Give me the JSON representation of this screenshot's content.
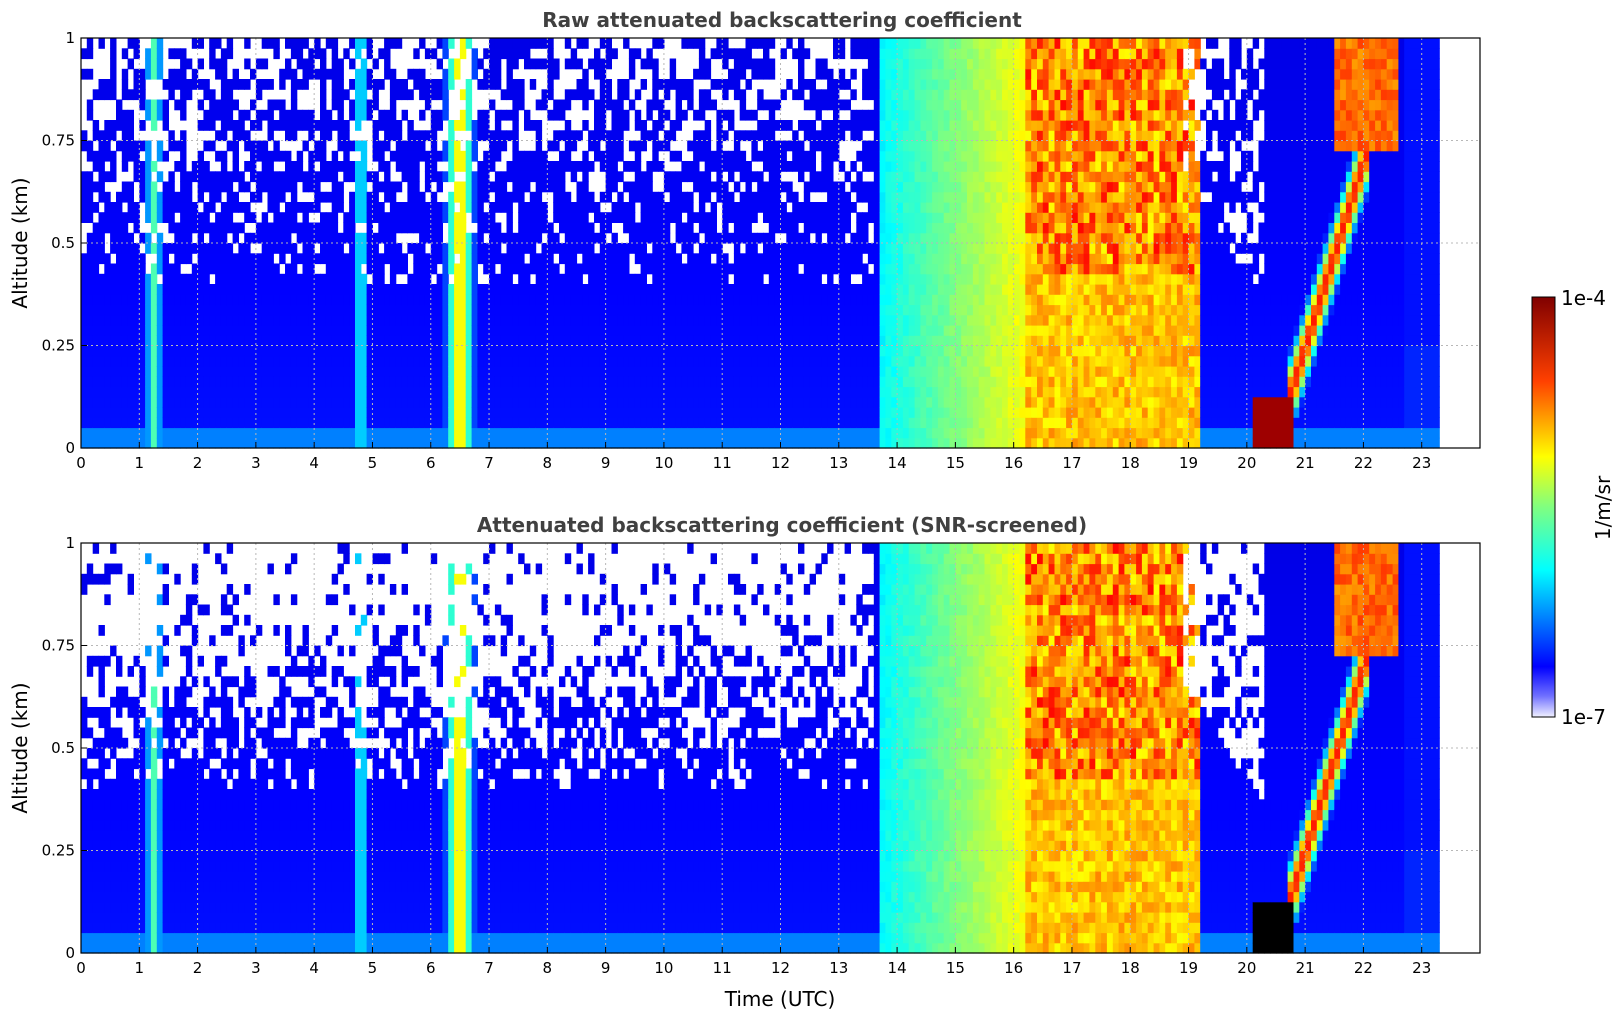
{
  "chart_data": [
    {
      "type": "heatmap",
      "title": "Raw attenuated backscattering coefficient",
      "ylabel": "Altitude (km)",
      "xlabel": "",
      "xlim": [
        0,
        24
      ],
      "ylim": [
        0,
        1
      ],
      "x_ticks": [
        "0",
        "1",
        "2",
        "3",
        "4",
        "5",
        "6",
        "7",
        "8",
        "9",
        "10",
        "11",
        "12",
        "13",
        "14",
        "15",
        "16",
        "17",
        "18",
        "19",
        "20",
        "21",
        "22",
        "23"
      ],
      "y_ticks": [
        "0",
        "0.25",
        "0.5",
        "0.75",
        "1"
      ],
      "grid": true,
      "data_extent_hours": [
        0,
        23.3
      ],
      "color_scale": "jet",
      "screened": false,
      "features": [
        {
          "x": [
            1.05,
            1.35
          ],
          "y_top": 1.0,
          "level": 0.42,
          "note": "vertical plume"
        },
        {
          "x": [
            4.65,
            4.85
          ],
          "y_top": 1.0,
          "level": 0.4,
          "note": "vertical plume"
        },
        {
          "x": [
            6.25,
            6.75
          ],
          "y_top": 1.0,
          "level": 0.62,
          "note": "vertical plume"
        },
        {
          "x": [
            13.65,
            16.2
          ],
          "y_top": 1.0,
          "level": 0.55,
          "note": "cloud/fog layer"
        },
        {
          "x": [
            16.2,
            19.2
          ],
          "y_top": 1.0,
          "level": 0.75,
          "note": "dense layer"
        },
        {
          "x": [
            20.1,
            20.7
          ],
          "y_top": 0.12,
          "level": 0.98,
          "note": "low dense cloud"
        },
        {
          "x": [
            20.8,
            22.1
          ],
          "y_top": 1.0,
          "level": 0.8,
          "note": "rising layer"
        }
      ]
    },
    {
      "type": "heatmap",
      "title": "Attenuated backscattering coefficient (SNR-screened)",
      "ylabel": "Altitude (km)",
      "xlabel": "Time (UTC)",
      "xlim": [
        0,
        24
      ],
      "ylim": [
        0,
        1
      ],
      "x_ticks": [
        "0",
        "1",
        "2",
        "3",
        "4",
        "5",
        "6",
        "7",
        "8",
        "9",
        "10",
        "11",
        "12",
        "13",
        "14",
        "15",
        "16",
        "17",
        "18",
        "19",
        "20",
        "21",
        "22",
        "23"
      ],
      "y_ticks": [
        "0",
        "0.25",
        "0.5",
        "0.75",
        "1"
      ],
      "grid": true,
      "data_extent_hours": [
        0,
        23.3
      ],
      "color_scale": "jet",
      "screened": true,
      "features": [
        {
          "x": [
            1.05,
            1.35
          ],
          "y_top": 1.0,
          "level": 0.42,
          "note": "vertical plume"
        },
        {
          "x": [
            4.65,
            4.85
          ],
          "y_top": 1.0,
          "level": 0.4,
          "note": "vertical plume"
        },
        {
          "x": [
            6.25,
            6.75
          ],
          "y_top": 1.0,
          "level": 0.62,
          "note": "vertical plume"
        },
        {
          "x": [
            13.65,
            16.2
          ],
          "y_top": 1.0,
          "level": 0.55,
          "note": "cloud/fog layer"
        },
        {
          "x": [
            16.2,
            19.2
          ],
          "y_top": 1.0,
          "level": 0.75,
          "note": "dense layer"
        },
        {
          "x": [
            20.1,
            20.7
          ],
          "y_top": 0.12,
          "level": 1.0,
          "note": "low dense cloud (saturated)"
        },
        {
          "x": [
            20.8,
            22.1
          ],
          "y_top": 1.0,
          "level": 0.8,
          "note": "rising layer"
        }
      ]
    }
  ],
  "colorbar": {
    "max_label": "1e-4",
    "min_label": "1e-7",
    "label": "1/m/sr",
    "colormap": "jet"
  },
  "colors": {
    "background": "#ffffff",
    "title": "#404040",
    "grid": "#b8b8b8"
  }
}
